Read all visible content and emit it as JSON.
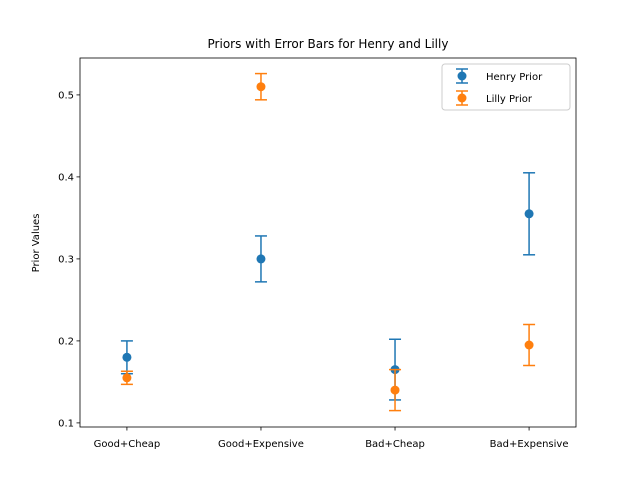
{
  "chart_data": {
    "type": "errorbar",
    "title": "Priors with Error Bars for Henry and Lilly",
    "xlabel": "",
    "ylabel": "Prior Values",
    "categories": [
      "Good+Cheap",
      "Good+Expensive",
      "Bad+Cheap",
      "Bad+Expensive"
    ],
    "ylim": [
      0.095,
      0.545
    ],
    "yticks": [
      0.1,
      0.2,
      0.3,
      0.4,
      0.5
    ],
    "ytick_labels": [
      "0.1",
      "0.2",
      "0.3",
      "0.4",
      "0.5"
    ],
    "grid": false,
    "legend_position": "top-right",
    "series": [
      {
        "name": "Henry Prior",
        "color": "#1f77b4",
        "values": [
          0.18,
          0.3,
          0.165,
          0.355
        ],
        "errors": [
          0.02,
          0.028,
          0.037,
          0.05
        ]
      },
      {
        "name": "Lilly Prior",
        "color": "#ff7f0e",
        "values": [
          0.155,
          0.51,
          0.14,
          0.195
        ],
        "errors": [
          0.008,
          0.016,
          0.025,
          0.025
        ]
      }
    ]
  }
}
